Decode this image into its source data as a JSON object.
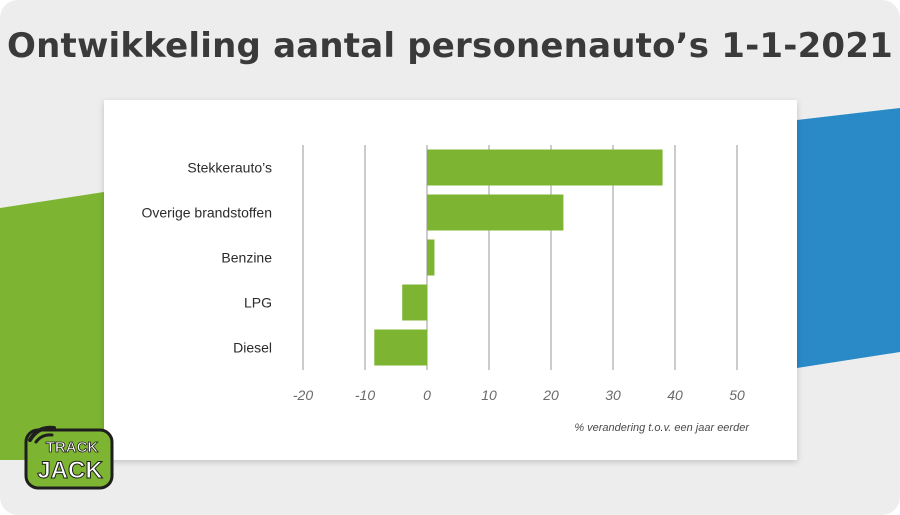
{
  "title": "Ontwikkeling aantal personenauto’s 1-1-2021",
  "colors": {
    "background": "#ededed",
    "bar": "#7db532",
    "accent_green": "#7db532",
    "accent_blue": "#2a8ac8",
    "title": "#3a3a3a",
    "gridline": "#9a9a9a",
    "tick_label": "#6a6a6a"
  },
  "logo": {
    "icon": "track-jack-logo",
    "text_top": "TRACK",
    "text_bottom": "JACK"
  },
  "chart_data": {
    "type": "bar",
    "orientation": "horizontal",
    "title": "Ontwikkeling aantal personenauto’s 1-1-2021",
    "categories": [
      "Stekkerauto’s",
      "Overige brandstoffen",
      "Benzine",
      "LPG",
      "Diesel"
    ],
    "values": [
      38,
      22,
      1.2,
      -4,
      -8.5
    ],
    "xlabel": "% verandering t.o.v. een jaar eerder",
    "ylabel": "",
    "xlim": [
      -20,
      50
    ],
    "xticks": [
      -20,
      -10,
      0,
      10,
      20,
      30,
      40,
      50
    ],
    "xtick_labels": [
      "-20",
      "-10",
      "0",
      "10",
      "20",
      "30",
      "40",
      "50"
    ],
    "grid": true,
    "legend": "none"
  }
}
